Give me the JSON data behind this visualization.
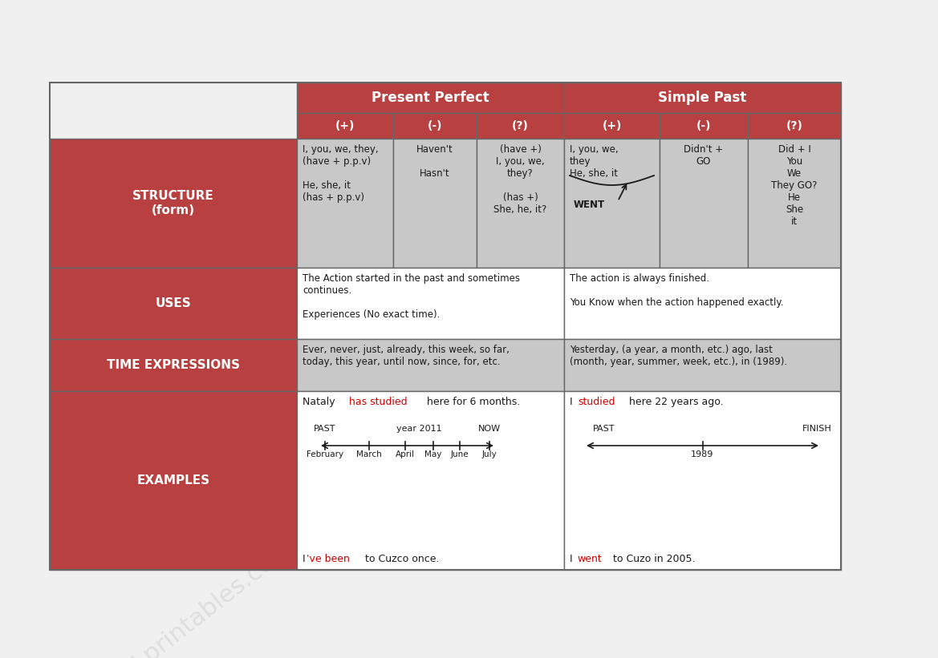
{
  "bg_color": "#f0f0f0",
  "red": "#b84040",
  "light_gray": "#c8c8c8",
  "white": "#ffffff",
  "text_dark": "#1a1a1a",
  "text_white": "#ffffff",
  "text_red": "#cc0000",
  "border": "#666666",
  "pp_header": "Present Perfect",
  "sp_header": "Simple Past",
  "sub_headers": [
    "(+)",
    "(-)",
    "(?)",
    "(+)",
    "(-)",
    "(?)"
  ],
  "row_labels": [
    "STRUCTURE\n(form)",
    "USES",
    "TIME EXPRESSIONS",
    "EXAMPLES"
  ],
  "structure_pp_pos": "I, you, we, they,\n(have + p.p.v)\n\nHe, she, it\n(has + p.p.v)",
  "structure_pp_neg": "Haven't\n\nHasn't",
  "structure_pp_que": "(have +)\nI, you, we,\nthey?\n\n(has +)\nShe, he, it?",
  "structure_sp_pos": "I, you, we,\nthey\nHe, she, it",
  "structure_sp_neg": "Didn't +\nGO",
  "structure_sp_que": "Did + I\nYou\nWe\nThey GO?\nHe\nShe\nit",
  "uses_pp": "The Action started in the past and sometimes\ncontinues.\n\nExperiences (No exact time).",
  "uses_sp": "The action is always finished.\n\nYou Know when the action happened exactly.",
  "time_pp": "Ever, never, just, already, this week, so far,\ntoday, this year, until now, since, for, etc.",
  "time_sp": "Yesterday, (a year, a month, etc.) ago, last\n(month, year, summer, week, etc.), in (1989).",
  "ex_pp1_plain1": "Nataly ",
  "ex_pp1_red": "has studied",
  "ex_pp1_plain2": " here for 6 months.",
  "ex_sp1_plain1": "I ",
  "ex_sp1_red": "studied",
  "ex_sp1_plain2": " here 22 years ago.",
  "ex_pp2_plain1": "I",
  "ex_pp2_red": "'ve been",
  "ex_pp2_plain2": " to Cuzco once.",
  "ex_sp2_plain1": "I ",
  "ex_sp2_red": "went",
  "ex_sp2_plain2": " to Cuzo in 2005.",
  "months": [
    "February",
    "March",
    "April",
    "May",
    "June",
    "July"
  ]
}
